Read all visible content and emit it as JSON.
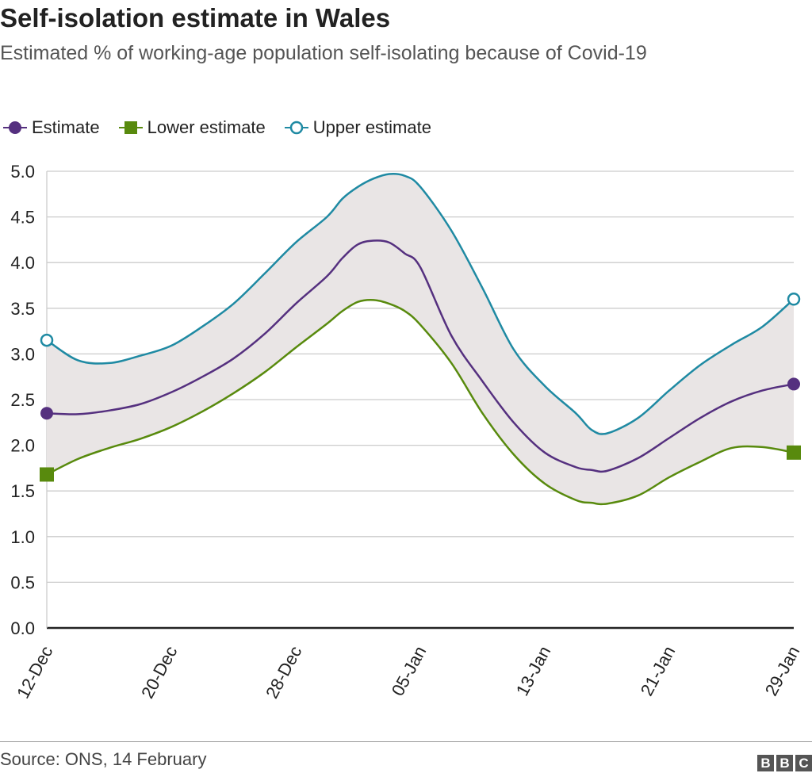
{
  "chart_data": {
    "type": "line",
    "title": "Self-isolation estimate in Wales",
    "subtitle": "Estimated % of working-age population self-isolating because of Covid-19",
    "xlabel": "",
    "ylabel": "",
    "ylim": [
      0,
      5
    ],
    "yticks": [
      "0.0",
      "0.5",
      "1.0",
      "1.5",
      "2.0",
      "2.5",
      "3.0",
      "3.5",
      "4.0",
      "4.5",
      "5.0"
    ],
    "xticks": [
      "12-Dec",
      "20-Dec",
      "28-Dec",
      "05-Jan",
      "13-Jan",
      "21-Jan",
      "29-Jan"
    ],
    "grid": true,
    "legend_position": "top-left",
    "x": [
      "12-Dec",
      "14-Dec",
      "16-Dec",
      "18-Dec",
      "20-Dec",
      "22-Dec",
      "24-Dec",
      "26-Dec",
      "28-Dec",
      "30-Dec",
      "31-Dec",
      "01-Jan",
      "02-Jan",
      "03-Jan",
      "04-Jan",
      "05-Jan",
      "07-Jan",
      "09-Jan",
      "11-Jan",
      "13-Jan",
      "15-Jan",
      "16-Jan",
      "17-Jan",
      "19-Jan",
      "21-Jan",
      "23-Jan",
      "25-Jan",
      "27-Jan",
      "29-Jan"
    ],
    "series": [
      {
        "name": "Estimate",
        "color": "#55307f",
        "marker": "circle-filled",
        "values": [
          2.35,
          2.34,
          2.38,
          2.45,
          2.58,
          2.75,
          2.95,
          3.22,
          3.55,
          3.85,
          4.05,
          4.2,
          4.24,
          4.22,
          4.1,
          3.95,
          3.2,
          2.7,
          2.25,
          1.92,
          1.76,
          1.73,
          1.72,
          1.86,
          2.08,
          2.3,
          2.48,
          2.6,
          2.67
        ]
      },
      {
        "name": "Lower estimate",
        "color": "#588a0d",
        "marker": "square",
        "values": [
          1.68,
          1.85,
          1.97,
          2.07,
          2.2,
          2.37,
          2.57,
          2.8,
          3.07,
          3.33,
          3.47,
          3.57,
          3.59,
          3.55,
          3.47,
          3.32,
          2.9,
          2.35,
          1.9,
          1.58,
          1.4,
          1.37,
          1.36,
          1.45,
          1.65,
          1.82,
          1.97,
          1.98,
          1.92
        ]
      },
      {
        "name": "Upper estimate",
        "color": "#1f8aa3",
        "marker": "circle-open",
        "values": [
          3.15,
          2.93,
          2.9,
          2.98,
          3.09,
          3.3,
          3.55,
          3.88,
          4.22,
          4.5,
          4.7,
          4.83,
          4.92,
          4.97,
          4.95,
          4.83,
          4.35,
          3.72,
          3.05,
          2.65,
          2.35,
          2.17,
          2.13,
          2.3,
          2.6,
          2.88,
          3.1,
          3.3,
          3.6
        ]
      }
    ],
    "band_color": "#e9e5e5"
  },
  "footer": {
    "source": "Source: ONS, 14 February",
    "logo": [
      "B",
      "B",
      "C"
    ]
  }
}
